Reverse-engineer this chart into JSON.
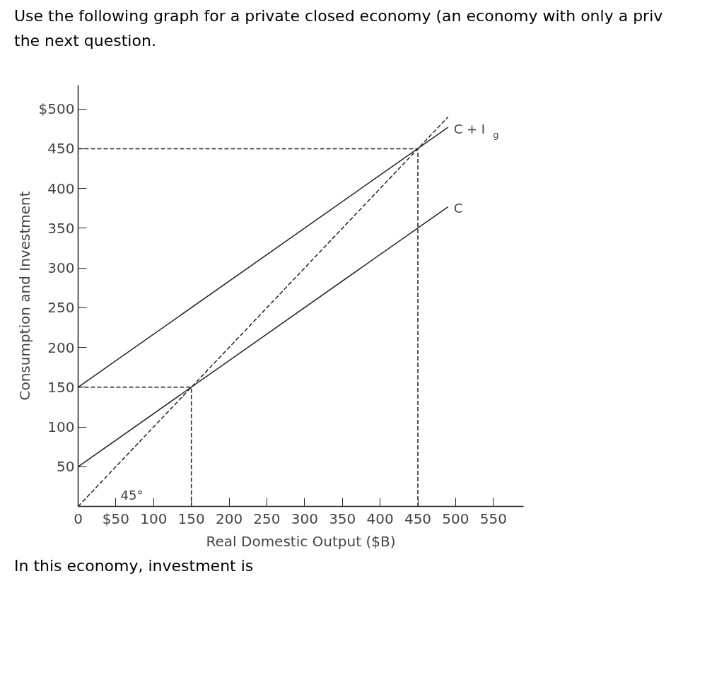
{
  "chart_data": {
    "type": "line",
    "title": "Use the following graph for a private closed economy (an economy with only a priv\nthe next question.",
    "xlabel": "Real Domestic Output ($B)",
    "ylabel": "Consumption and Investment",
    "xlim": [
      0,
      590
    ],
    "ylim": [
      0,
      530
    ],
    "xticks": [
      {
        "value": 0,
        "label": "0"
      },
      {
        "value": 50,
        "label": "$50"
      },
      100,
      150,
      200,
      250,
      300,
      350,
      400,
      450,
      500,
      550
    ],
    "yticks": [
      50,
      100,
      150,
      200,
      250,
      300,
      350,
      400,
      450,
      {
        "value": 500,
        "label": "$500"
      }
    ],
    "grid": false,
    "series": [
      {
        "name": "C + I$_{g}$",
        "color": "#222222",
        "line_style": "solid",
        "x": [
          0,
          490
        ],
        "values": [
          150,
          477
        ]
      },
      {
        "name": "C",
        "color": "#222222",
        "line_style": "solid",
        "x": [
          0,
          490
        ],
        "values": [
          50,
          377
        ]
      },
      {
        "color": "#222222",
        "line_style": "dashed",
        "x": [
          0,
          490
        ],
        "values": [
          0,
          490
        ]
      },
      {
        "color": "#222222",
        "line_style": "dashed",
        "x": [
          0,
          450,
          450
        ],
        "values": [
          450,
          450,
          0
        ]
      },
      {
        "color": "#222222",
        "line_style": "dashed",
        "x": [
          0,
          150,
          150
        ],
        "values": [
          150,
          150,
          0
        ]
      }
    ],
    "annotations": [
      "45°",
      "In this economy, investment is"
    ]
  }
}
